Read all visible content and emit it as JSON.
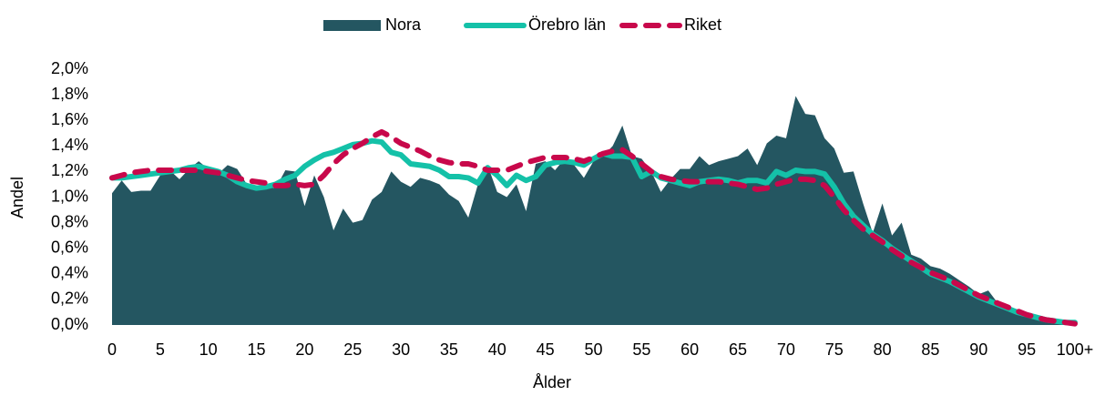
{
  "chart_data": {
    "type": "area",
    "x_label": "Ålder",
    "y_label": "Andel",
    "categories": [
      "0",
      null,
      null,
      null,
      null,
      "5",
      null,
      null,
      null,
      null,
      "10",
      null,
      null,
      null,
      null,
      "15",
      null,
      null,
      null,
      null,
      "20",
      null,
      null,
      null,
      null,
      "25",
      null,
      null,
      null,
      null,
      "30",
      null,
      null,
      null,
      null,
      "35",
      null,
      null,
      null,
      null,
      "40",
      null,
      null,
      null,
      null,
      "45",
      null,
      null,
      null,
      null,
      "50",
      null,
      null,
      null,
      null,
      "55",
      null,
      null,
      null,
      null,
      "60",
      null,
      null,
      null,
      null,
      "65",
      null,
      null,
      null,
      null,
      "70",
      null,
      null,
      null,
      null,
      "75",
      null,
      null,
      null,
      null,
      "80",
      null,
      null,
      null,
      null,
      "85",
      null,
      null,
      null,
      null,
      "90",
      null,
      null,
      null,
      null,
      "95",
      null,
      null,
      null,
      null,
      "100+"
    ],
    "series": [
      {
        "name": "Nora",
        "type": "area",
        "color": "#245661",
        "values": [
          1.03,
          1.13,
          1.04,
          1.05,
          1.05,
          1.17,
          1.21,
          1.14,
          1.22,
          1.28,
          1.22,
          1.18,
          1.25,
          1.22,
          1.1,
          1.07,
          1.08,
          1.07,
          1.21,
          1.2,
          0.93,
          1.17,
          1.0,
          0.74,
          0.91,
          0.8,
          0.82,
          0.98,
          1.04,
          1.2,
          1.12,
          1.08,
          1.15,
          1.13,
          1.1,
          1.02,
          0.97,
          0.84,
          1.1,
          1.25,
          1.04,
          1.0,
          1.1,
          0.89,
          1.26,
          1.28,
          1.21,
          1.3,
          1.25,
          1.15,
          1.28,
          1.32,
          1.4,
          1.56,
          1.32,
          1.3,
          1.2,
          1.04,
          1.14,
          1.22,
          1.22,
          1.32,
          1.25,
          1.28,
          1.3,
          1.32,
          1.38,
          1.25,
          1.42,
          1.48,
          1.46,
          1.79,
          1.65,
          1.64,
          1.46,
          1.38,
          1.19,
          1.2,
          0.95,
          0.72,
          0.95,
          0.7,
          0.8,
          0.55,
          0.52,
          0.46,
          0.44,
          0.4,
          0.35,
          0.3,
          0.24,
          0.27,
          0.17,
          0.14,
          0.11,
          0.08,
          0.06,
          0.04,
          0.03,
          0.02,
          0.03
        ]
      },
      {
        "name": "Örebro län",
        "type": "line",
        "color": "#14c1a8",
        "values": [
          1.15,
          1.15,
          1.16,
          1.17,
          1.18,
          1.19,
          1.2,
          1.21,
          1.23,
          1.24,
          1.22,
          1.2,
          1.17,
          1.12,
          1.09,
          1.07,
          1.08,
          1.1,
          1.14,
          1.17,
          1.24,
          1.29,
          1.33,
          1.35,
          1.38,
          1.41,
          1.42,
          1.44,
          1.43,
          1.35,
          1.33,
          1.26,
          1.25,
          1.24,
          1.21,
          1.16,
          1.16,
          1.15,
          1.11,
          1.23,
          1.17,
          1.09,
          1.17,
          1.13,
          1.16,
          1.25,
          1.27,
          1.28,
          1.27,
          1.25,
          1.3,
          1.34,
          1.32,
          1.32,
          1.31,
          1.16,
          1.2,
          1.15,
          1.13,
          1.11,
          1.09,
          1.12,
          1.13,
          1.14,
          1.13,
          1.11,
          1.13,
          1.13,
          1.11,
          1.2,
          1.17,
          1.21,
          1.2,
          1.2,
          1.18,
          1.08,
          0.95,
          0.85,
          0.78,
          0.71,
          0.66,
          0.6,
          0.55,
          0.5,
          0.45,
          0.4,
          0.37,
          0.34,
          0.3,
          0.26,
          0.22,
          0.19,
          0.16,
          0.13,
          0.1,
          0.08,
          0.06,
          0.04,
          0.03,
          0.02,
          0.02
        ]
      },
      {
        "name": "Riket",
        "type": "line",
        "dashed": true,
        "color": "#c8084b",
        "values": [
          1.15,
          1.17,
          1.19,
          1.2,
          1.21,
          1.21,
          1.21,
          1.21,
          1.21,
          1.21,
          1.2,
          1.19,
          1.17,
          1.15,
          1.13,
          1.12,
          1.11,
          1.09,
          1.09,
          1.1,
          1.09,
          1.1,
          1.17,
          1.26,
          1.33,
          1.38,
          1.42,
          1.47,
          1.51,
          1.47,
          1.42,
          1.39,
          1.36,
          1.32,
          1.29,
          1.27,
          1.26,
          1.26,
          1.24,
          1.21,
          1.21,
          1.21,
          1.24,
          1.27,
          1.29,
          1.31,
          1.31,
          1.31,
          1.3,
          1.28,
          1.31,
          1.34,
          1.36,
          1.37,
          1.32,
          1.26,
          1.2,
          1.16,
          1.14,
          1.13,
          1.12,
          1.12,
          1.12,
          1.12,
          1.11,
          1.1,
          1.08,
          1.06,
          1.07,
          1.1,
          1.12,
          1.14,
          1.14,
          1.13,
          1.09,
          1.0,
          0.9,
          0.82,
          0.75,
          0.7,
          0.65,
          0.59,
          0.54,
          0.49,
          0.45,
          0.41,
          0.38,
          0.35,
          0.31,
          0.27,
          0.23,
          0.2,
          0.17,
          0.14,
          0.11,
          0.08,
          0.06,
          0.04,
          0.03,
          0.02,
          0.01
        ]
      }
    ],
    "ylim": [
      0,
      2
    ],
    "yticks": [
      {
        "value": 0,
        "label": "0,0%"
      },
      {
        "value": 0.2,
        "label": "0,2%"
      },
      {
        "value": 0.4,
        "label": "0,4%"
      },
      {
        "value": 0.6,
        "label": "0,6%"
      },
      {
        "value": 0.8,
        "label": "0,8%"
      },
      {
        "value": 1.0,
        "label": "1,0%"
      },
      {
        "value": 1.2,
        "label": "1,2%"
      },
      {
        "value": 1.4,
        "label": "1,4%"
      },
      {
        "value": 1.6,
        "label": "1,6%"
      },
      {
        "value": 1.8,
        "label": "1,8%"
      },
      {
        "value": 2.0,
        "label": "2,0%"
      }
    ],
    "legend": "top"
  }
}
